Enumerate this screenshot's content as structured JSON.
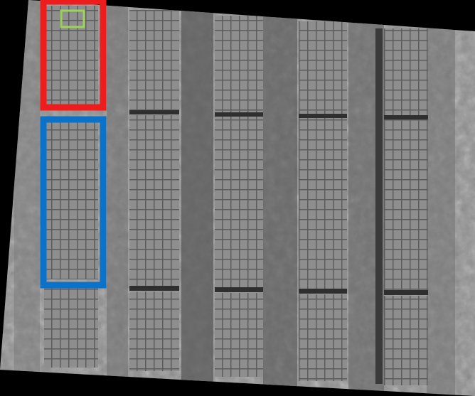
{
  "image": {
    "kind": "aerial-grayscale-solar-farm",
    "colors": {
      "background": "#000000",
      "ground_light": "#9a9a9a",
      "ground_dark": "#3c3c3c",
      "panel": "#8c8c8c",
      "panel_grid": "#5a5a5a",
      "row_gap": "#2e2e2e"
    }
  },
  "annotations": [
    {
      "id": "red",
      "color": "#ee1c1c"
    },
    {
      "id": "blue",
      "color": "#0a72c8"
    },
    {
      "id": "green",
      "color": "#9ed25a"
    }
  ]
}
